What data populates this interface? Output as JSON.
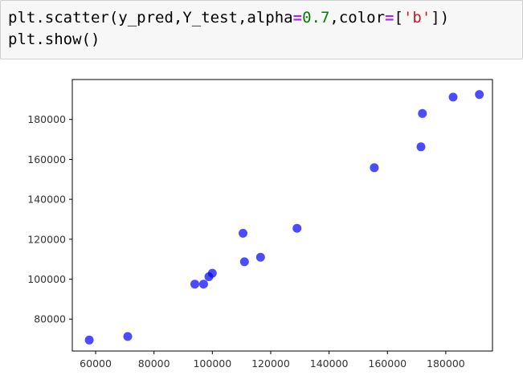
{
  "code_cell": {
    "line1": {
      "prefix": "plt.scatter(y_pred,Y_test,alpha",
      "eq1": "=",
      "num": "0.7",
      "mid": ",color",
      "eq2": "=",
      "open": "[",
      "str": "'b'",
      "close": "])"
    },
    "line2": "plt.show()"
  },
  "chart_data": {
    "type": "scatter",
    "x": [
      57800,
      71000,
      94000,
      97000,
      98800,
      100000,
      110500,
      111000,
      116500,
      129000,
      155500,
      171500,
      172000,
      182500,
      191500
    ],
    "y": [
      69500,
      71300,
      97500,
      97500,
      101200,
      103000,
      123000,
      108700,
      111000,
      125500,
      155800,
      166300,
      183000,
      191200,
      192500
    ],
    "color": "#0000ff",
    "alpha": 0.7,
    "xlim": [
      52000,
      196000
    ],
    "ylim": [
      64000,
      200000
    ],
    "xticks": [
      60000,
      80000,
      100000,
      120000,
      140000,
      160000,
      180000
    ],
    "yticks": [
      80000,
      100000,
      120000,
      140000,
      160000,
      180000
    ],
    "xtick_labels": [
      "60000",
      "80000",
      "100000",
      "120000",
      "140000",
      "160000",
      "180000"
    ],
    "ytick_labels": [
      "80000",
      "100000",
      "120000",
      "140000",
      "160000",
      "180000"
    ],
    "title": "",
    "xlabel": "",
    "ylabel": "",
    "grid": false
  }
}
